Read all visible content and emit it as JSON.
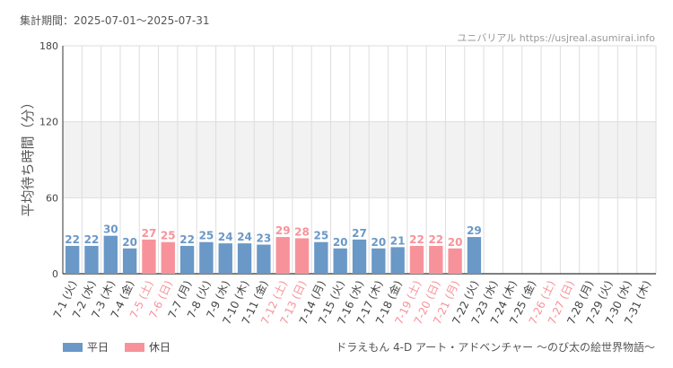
{
  "header": {
    "period": "集計期間：2025-07-01～2025-07-31",
    "source": "ユニバリアル https://usjreal.asumirai.info"
  },
  "footer": {
    "attraction": "ドラえもん 4-D アート・アドベンチャー ～のび太の絵世界物語～"
  },
  "colors": {
    "weekday": "#6a98c7",
    "holiday": "#f8929a",
    "band": "#f2f2f2",
    "grid": "#dddddd",
    "axis": "#333333"
  },
  "chart_data": {
    "type": "bar",
    "ylabel": "平均待ち時間（分）",
    "ylim": [
      0,
      180
    ],
    "yticks": [
      0,
      60,
      120,
      180
    ],
    "grid": true,
    "shaded_band": [
      60,
      120
    ],
    "legend": {
      "position": "bottom-left",
      "entries": [
        {
          "name": "平日",
          "key": "weekday"
        },
        {
          "name": "休日",
          "key": "holiday"
        }
      ]
    },
    "categories": [
      "7-1 (火)",
      "7-2 (水)",
      "7-3 (木)",
      "7-4 (金)",
      "7-5 (土)",
      "7-6 (日)",
      "7-7 (月)",
      "7-8 (火)",
      "7-9 (水)",
      "7-10 (木)",
      "7-11 (金)",
      "7-12 (土)",
      "7-13 (日)",
      "7-14 (月)",
      "7-15 (火)",
      "7-16 (水)",
      "7-17 (木)",
      "7-18 (金)",
      "7-19 (土)",
      "7-20 (日)",
      "7-21 (月)",
      "7-22 (火)",
      "7-23 (水)",
      "7-24 (木)",
      "7-25 (金)",
      "7-26 (土)",
      "7-27 (日)",
      "7-28 (月)",
      "7-29 (火)",
      "7-30 (水)",
      "7-31 (木)"
    ],
    "values": [
      22,
      22,
      30,
      20,
      27,
      25,
      22,
      25,
      24,
      24,
      23,
      29,
      28,
      25,
      20,
      27,
      20,
      21,
      22,
      22,
      20,
      29,
      null,
      null,
      null,
      null,
      null,
      null,
      null,
      null,
      null
    ],
    "holiday": [
      false,
      false,
      false,
      false,
      true,
      true,
      false,
      false,
      false,
      false,
      false,
      true,
      true,
      false,
      false,
      false,
      false,
      false,
      true,
      true,
      true,
      false,
      false,
      false,
      false,
      true,
      true,
      false,
      false,
      false,
      false
    ]
  }
}
